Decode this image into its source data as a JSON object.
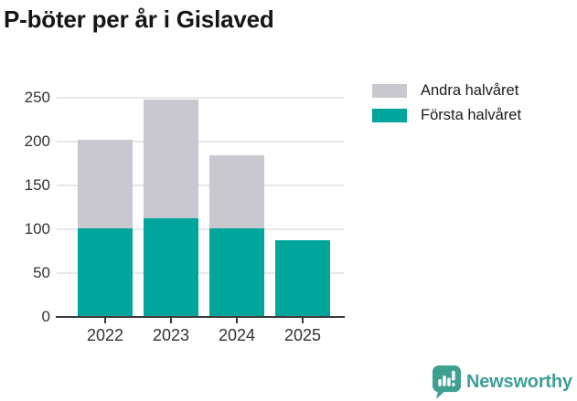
{
  "title": "P-böter per år i Gislaved",
  "legend": {
    "items": [
      {
        "label": "Andra halvåret",
        "color": "#C9C8CF"
      },
      {
        "label": "Första halvåret",
        "color": "#00A69B"
      }
    ]
  },
  "chart_data": {
    "type": "bar",
    "stacked": true,
    "title": "P-böter per år i Gislaved",
    "categories": [
      "2022",
      "2023",
      "2024",
      "2025"
    ],
    "series": [
      {
        "name": "Första halvåret",
        "color": "#00A69B",
        "values": [
          101,
          113,
          101,
          87
        ]
      },
      {
        "name": "Andra halvåret",
        "color": "#C9C8CF",
        "values": [
          101,
          135,
          83,
          0
        ]
      }
    ],
    "totals": [
      202,
      248,
      184,
      87
    ],
    "xlabel": "",
    "ylabel": "",
    "ylim": [
      0,
      250
    ],
    "yticks": [
      0,
      50,
      100,
      150,
      200,
      250
    ],
    "grid": true,
    "legend_position": "top-right"
  },
  "branding": {
    "logo_text": "Newsworthy",
    "logo_color": "#3fa092",
    "logo_icon": "newsworthy-pin-barchart-icon"
  }
}
